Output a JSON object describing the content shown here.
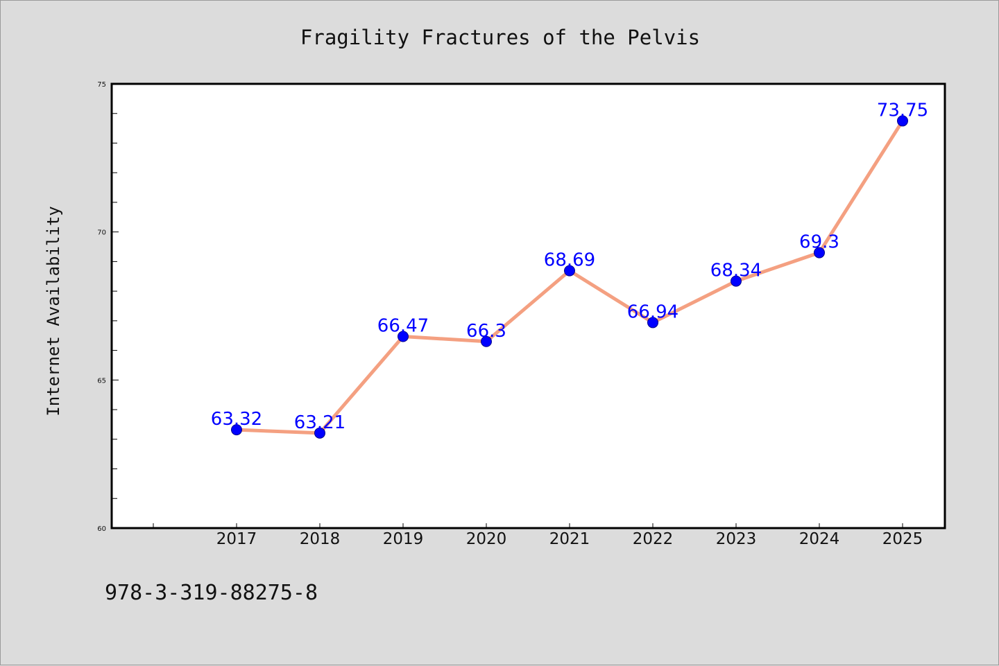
{
  "chart_data": {
    "type": "line",
    "title": "Fragility Fractures of the Pelvis",
    "xlabel": "",
    "ylabel": "Internet Availability",
    "categories": [
      "2017",
      "2018",
      "2019",
      "2020",
      "2021",
      "2022",
      "2023",
      "2024",
      "2025"
    ],
    "series": [
      {
        "values": [
          63.32,
          63.21,
          66.47,
          66.3,
          68.69,
          66.94,
          68.34,
          69.3,
          73.75
        ],
        "labels": [
          "63.32",
          "63.21",
          "66.47",
          "66.3",
          "68.69",
          "66.94",
          "68.34",
          "69.3",
          "73.75"
        ]
      }
    ],
    "ylim": [
      60,
      75
    ],
    "yticks": [
      "60",
      "65",
      "70",
      "75"
    ],
    "yminor_step": 1,
    "grid": false,
    "legend": "none",
    "colors": {
      "line": "#f4a081",
      "marker": "#0000ff",
      "label": "#0000ff"
    }
  },
  "footer": {
    "isbn": "978-3-319-88275-8"
  }
}
